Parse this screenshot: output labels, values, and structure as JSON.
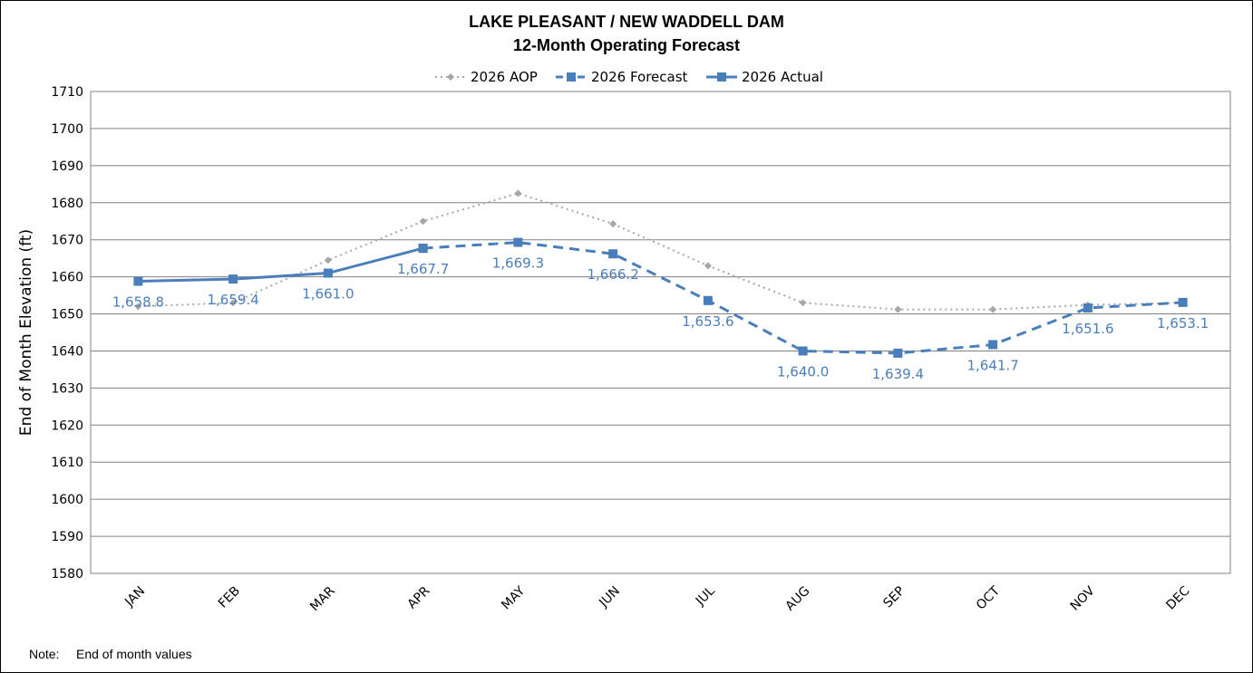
{
  "chart_data": {
    "type": "line",
    "title": "LAKE PLEASANT / NEW WADDELL DAM",
    "subtitle": "12-Month Operating Forecast",
    "xlabel": "",
    "ylabel": "End of Month Elevation (ft)",
    "categories": [
      "JAN",
      "FEB",
      "MAR",
      "APR",
      "MAY",
      "JUN",
      "JUL",
      "AUG",
      "SEP",
      "OCT",
      "NOV",
      "DEC"
    ],
    "ylim": [
      1580,
      1710
    ],
    "yticks": [
      "1710",
      "1700",
      "1690",
      "1680",
      "1670",
      "1660",
      "1650",
      "1640",
      "1630",
      "1620",
      "1610",
      "1600",
      "1590",
      "1580"
    ],
    "grid": true,
    "legend_position": "top",
    "series": [
      {
        "name": "2026 AOP",
        "style": "dotted",
        "marker": "diamond",
        "color": "#a6a6a6",
        "values": [
          1652,
          1653,
          1664.5,
          1675,
          1682.5,
          1674.3,
          1663,
          1653,
          1651.2,
          1651.2,
          1652.4,
          1653
        ]
      },
      {
        "name": "2026 Forecast",
        "style": "dashed",
        "marker": "square",
        "color": "#4a7ebb",
        "values": [
          null,
          null,
          null,
          1667.7,
          1669.3,
          1666.2,
          1653.6,
          1640.0,
          1639.4,
          1641.7,
          1651.6,
          1653.1
        ]
      },
      {
        "name": "2026 Actual",
        "style": "solid",
        "marker": "square",
        "color": "#4a7ebb",
        "values": [
          1658.8,
          1659.4,
          1661.0,
          1667.7,
          null,
          null,
          null,
          null,
          null,
          null,
          null,
          null
        ]
      }
    ],
    "data_labels": [
      "1,658.8",
      "1,659.4",
      "1,661.0",
      "1,667.7",
      "1,669.3",
      "1,666.2",
      "1,653.6",
      "1,640.0",
      "1,639.4",
      "1,641.7",
      "1,651.6",
      "1,653.1"
    ],
    "data_label_color": "#4a7ebb"
  },
  "note": {
    "prefix": "Note:",
    "text": "End of month values"
  }
}
